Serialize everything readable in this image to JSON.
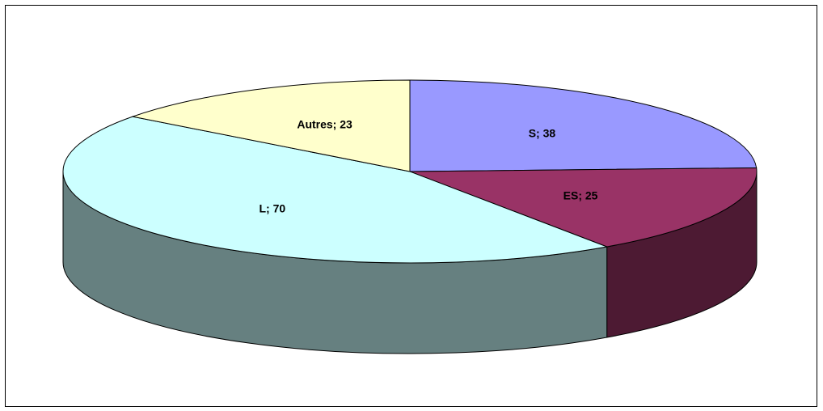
{
  "chart_data": {
    "type": "pie",
    "style": "3d",
    "title": "",
    "slices": [
      {
        "name": "S",
        "value": 38,
        "label": "S; 38",
        "top_color": "#9999ff",
        "side_color": "#5c5c99"
      },
      {
        "name": "ES",
        "value": 25,
        "label": "ES; 25",
        "top_color": "#993366",
        "side_color": "#4d1a33"
      },
      {
        "name": "L",
        "value": 70,
        "label": "L; 70",
        "top_color": "#ccffff",
        "side_color": "#668080"
      },
      {
        "name": "Autres",
        "value": 23,
        "label": "Autres; 23",
        "top_color": "#ffffcc",
        "side_color": "#808066"
      }
    ]
  }
}
